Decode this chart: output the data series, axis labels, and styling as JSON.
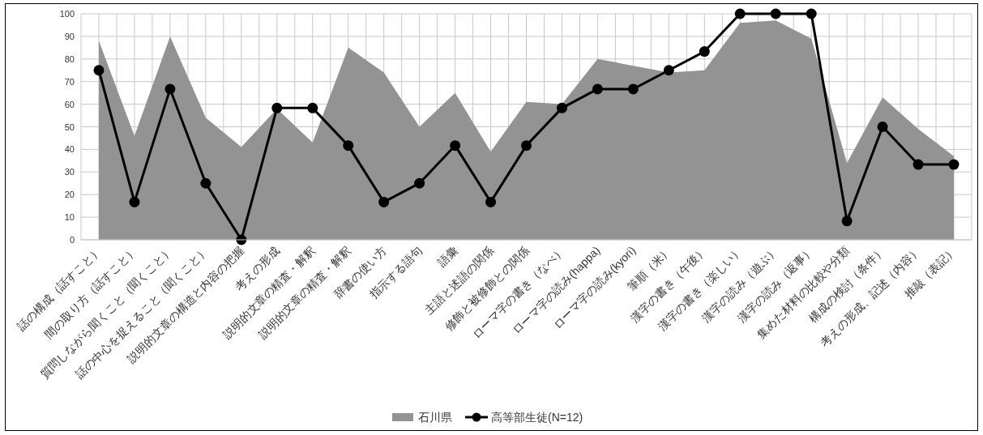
{
  "chart_data": {
    "type": "area",
    "categories": [
      "話の構成（話すこと）",
      "間の取り方（話すこと）",
      "質問しながら聞くこと（聞くこと）",
      "話の中心を捉えること（聞くこと）",
      "説明的文章の構造と内容の把握",
      "考えの形成",
      "説明的文章の精査・解釈",
      "説明的文章の精査・解釈",
      "辞書の使い方",
      "指示する語句",
      "語彙",
      "主語と述語の関係",
      "修飾と被修飾との関係",
      "ローマ字の書き（なべ）",
      "ローマ字の読み(happa)",
      "ローマ字の読み(kyori)",
      "筆順（米）",
      "漢字の書き（午後）",
      "漢字の書き（楽しい）",
      "漢字の読み（遊ぶ）",
      "漢字の読み（返事）",
      "集めた材料の比較や分類",
      "構成の検討（条件）",
      "考えの形成、記述（内容）",
      "推敲（表記）"
    ],
    "series": [
      {
        "name": "石川県",
        "color": "#939393",
        "values": [
          88,
          46,
          90,
          54,
          41,
          58,
          43,
          85,
          74,
          50,
          65,
          39,
          61,
          60,
          80,
          77,
          74,
          75,
          96,
          97,
          89,
          34,
          63,
          49,
          37
        ]
      },
      {
        "name": "高等部生徒(N=12)",
        "type": "line",
        "color": "#000000",
        "marker": "circle",
        "values": [
          75,
          16.7,
          66.7,
          25,
          0,
          58.3,
          58.3,
          41.7,
          16.7,
          25,
          41.7,
          16.7,
          41.7,
          58.3,
          66.7,
          66.7,
          75,
          83.3,
          100,
          100,
          100,
          8.3,
          50,
          33.3,
          33.3
        ]
      }
    ],
    "ylim": [
      0,
      100
    ],
    "yticks": [
      0,
      10,
      20,
      30,
      40,
      50,
      60,
      70,
      80,
      90,
      100
    ],
    "grid": true,
    "legend": "bottom"
  }
}
